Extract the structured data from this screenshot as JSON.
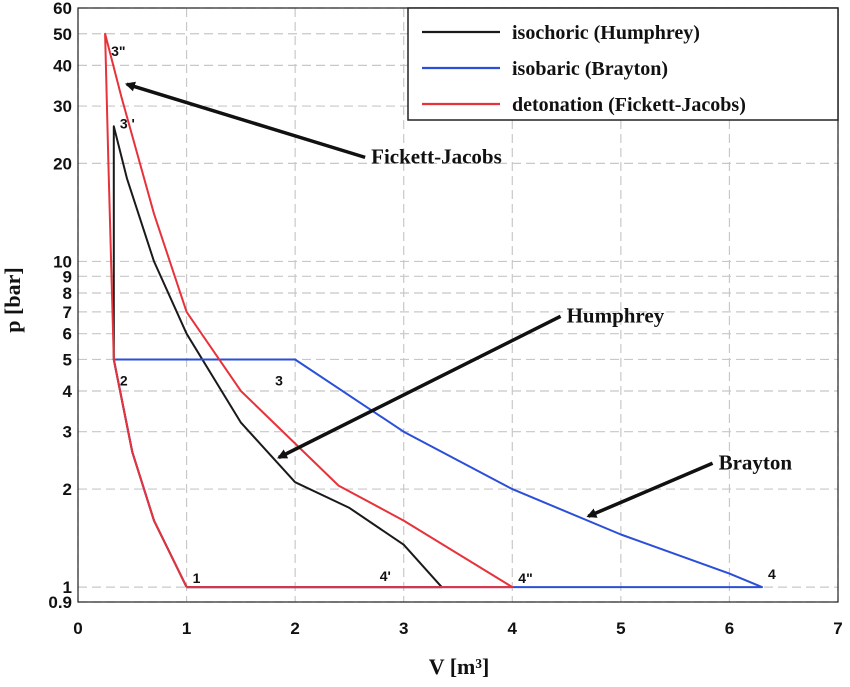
{
  "chart_data": {
    "type": "line",
    "title": "",
    "xlabel": "V [m³]",
    "ylabel": "p [bar]",
    "xlim": [
      0,
      7
    ],
    "ylim": [
      0.9,
      60
    ],
    "yscale": "log",
    "grid": true,
    "legend_position": "top-right",
    "x_ticks": [
      "0",
      "1",
      "2",
      "3",
      "4",
      "5",
      "6",
      "7"
    ],
    "y_ticks": [
      "0.9",
      "1",
      "2",
      "3",
      "4",
      "5",
      "6",
      "7",
      "8",
      "9",
      "10",
      "20",
      "30",
      "40",
      "50",
      "60"
    ],
    "colors": {
      "isochoric": "#1a1a1a",
      "isobaric": "#2b4fd8",
      "detonation": "#e8323a",
      "grid": "#c8c8c8"
    },
    "series": [
      {
        "name": "isochoric (Humphrey)",
        "key": "isochoric",
        "points": [
          [
            1.0,
            1.0
          ],
          [
            0.7,
            1.6
          ],
          [
            0.5,
            2.6
          ],
          [
            0.33,
            5.0
          ],
          [
            0.33,
            26.0
          ],
          [
            0.45,
            18.0
          ],
          [
            0.7,
            10.0
          ],
          [
            1.0,
            6.0
          ],
          [
            1.5,
            3.2
          ],
          [
            2.0,
            2.1
          ],
          [
            2.5,
            1.75
          ],
          [
            3.0,
            1.35
          ],
          [
            3.35,
            1.0
          ],
          [
            1.0,
            1.0
          ]
        ]
      },
      {
        "name": "isobaric (Brayton)",
        "key": "isobaric",
        "points": [
          [
            1.0,
            1.0
          ],
          [
            0.7,
            1.6
          ],
          [
            0.5,
            2.6
          ],
          [
            0.33,
            5.0
          ],
          [
            2.0,
            5.0
          ],
          [
            3.0,
            3.0
          ],
          [
            4.0,
            2.0
          ],
          [
            5.0,
            1.45
          ],
          [
            6.0,
            1.1
          ],
          [
            6.3,
            1.0
          ],
          [
            1.0,
            1.0
          ]
        ]
      },
      {
        "name": "detonation (Fickett-Jacobs)",
        "key": "detonation",
        "points": [
          [
            1.0,
            1.0
          ],
          [
            0.7,
            1.6
          ],
          [
            0.5,
            2.6
          ],
          [
            0.33,
            5.0
          ],
          [
            0.28,
            20.0
          ],
          [
            0.25,
            50.0
          ],
          [
            0.4,
            32.0
          ],
          [
            0.7,
            14.0
          ],
          [
            1.0,
            7.0
          ],
          [
            1.5,
            4.0
          ],
          [
            2.4,
            2.05
          ],
          [
            3.0,
            1.6
          ],
          [
            4.0,
            1.0
          ],
          [
            1.0,
            1.0
          ]
        ]
      }
    ],
    "point_labels": [
      {
        "text": "1",
        "at": [
          1.0,
          1.0
        ]
      },
      {
        "text": "2",
        "at": [
          0.33,
          5.0
        ]
      },
      {
        "text": "3",
        "at": [
          2.0,
          5.0
        ]
      },
      {
        "text": "3 '",
        "at": [
          0.33,
          26.0
        ]
      },
      {
        "text": "3\"",
        "at": [
          0.25,
          50.0
        ]
      },
      {
        "text": "4'",
        "at": [
          3.35,
          1.0
        ]
      },
      {
        "text": "4\"",
        "at": [
          4.0,
          1.0
        ]
      },
      {
        "text": "4",
        "at": [
          6.3,
          1.0
        ]
      }
    ],
    "annotations": [
      {
        "text": "Fickett-Jacobs",
        "label_at": [
          2.7,
          20.0
        ],
        "arrow_to": [
          0.45,
          35.0
        ]
      },
      {
        "text": "Humphrey",
        "label_at": [
          4.5,
          6.5
        ],
        "arrow_to": [
          1.85,
          2.5
        ]
      },
      {
        "text": "Brayton",
        "label_at": [
          5.9,
          2.3
        ],
        "arrow_to": [
          4.7,
          1.65
        ]
      }
    ]
  }
}
